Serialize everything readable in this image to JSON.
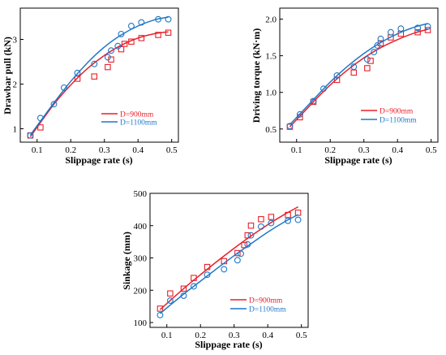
{
  "chart_data": [
    {
      "type": "scatter",
      "xlabel": "Slippage rate (s)",
      "ylabel": "Drawbar pull (kN)",
      "xlim": [
        0.05,
        0.52
      ],
      "ylim": [
        0.7,
        3.7
      ],
      "xticks": [
        "0.1",
        "0.2",
        "0.3",
        "0.4",
        "0.5"
      ],
      "yticks": [
        "1",
        "2",
        "3"
      ],
      "x_tick_values": [
        0.1,
        0.2,
        0.3,
        0.4,
        0.5
      ],
      "y_tick_values": [
        1,
        2,
        3
      ],
      "legend_position": "lower-right",
      "series": [
        {
          "name": "D=900mm",
          "color": "#e8202a",
          "marker": "square",
          "points": [
            [
              0.08,
              0.85
            ],
            [
              0.11,
              1.03
            ],
            [
              0.22,
              2.12
            ],
            [
              0.27,
              2.17
            ],
            [
              0.31,
              2.38
            ],
            [
              0.32,
              2.55
            ],
            [
              0.35,
              2.78
            ],
            [
              0.36,
              2.9
            ],
            [
              0.38,
              2.95
            ],
            [
              0.41,
              3.03
            ],
            [
              0.46,
              3.1
            ],
            [
              0.49,
              3.15
            ]
          ],
          "fit": [
            [
              0.08,
              0.82
            ],
            [
              0.15,
              1.55
            ],
            [
              0.2,
              1.98
            ],
            [
              0.25,
              2.35
            ],
            [
              0.3,
              2.64
            ],
            [
              0.35,
              2.87
            ],
            [
              0.4,
              3.03
            ],
            [
              0.45,
              3.13
            ],
            [
              0.49,
              3.17
            ]
          ]
        },
        {
          "name": "D=1100mm",
          "color": "#1f77c8",
          "marker": "circle",
          "points": [
            [
              0.08,
              0.85
            ],
            [
              0.11,
              1.24
            ],
            [
              0.15,
              1.55
            ],
            [
              0.18,
              1.92
            ],
            [
              0.22,
              2.25
            ],
            [
              0.27,
              2.45
            ],
            [
              0.31,
              2.6
            ],
            [
              0.32,
              2.75
            ],
            [
              0.34,
              2.85
            ],
            [
              0.35,
              3.12
            ],
            [
              0.38,
              3.3
            ],
            [
              0.41,
              3.38
            ],
            [
              0.46,
              3.45
            ],
            [
              0.49,
              3.45
            ]
          ],
          "fit": [
            [
              0.08,
              0.86
            ],
            [
              0.15,
              1.58
            ],
            [
              0.2,
              2.06
            ],
            [
              0.25,
              2.48
            ],
            [
              0.3,
              2.83
            ],
            [
              0.35,
              3.1
            ],
            [
              0.4,
              3.3
            ],
            [
              0.45,
              3.44
            ],
            [
              0.49,
              3.5
            ]
          ]
        }
      ]
    },
    {
      "type": "scatter",
      "xlabel": "Slippage rate (s)",
      "ylabel": "Driving torque (kN·m)",
      "xlim": [
        0.05,
        0.52
      ],
      "ylim": [
        0.32,
        2.15
      ],
      "xticks": [
        "0.1",
        "0.2",
        "0.3",
        "0.4",
        "0.5"
      ],
      "yticks": [
        "0.5",
        "1.0",
        "1.5",
        "2.0"
      ],
      "x_tick_values": [
        0.1,
        0.2,
        0.3,
        0.4,
        0.5
      ],
      "y_tick_values": [
        0.5,
        1.0,
        1.5,
        2.0
      ],
      "legend_position": "lower-right",
      "series": [
        {
          "name": "D=900mm",
          "color": "#e8202a",
          "marker": "square",
          "points": [
            [
              0.08,
              0.53
            ],
            [
              0.11,
              0.66
            ],
            [
              0.15,
              0.87
            ],
            [
              0.22,
              1.17
            ],
            [
              0.27,
              1.27
            ],
            [
              0.31,
              1.33
            ],
            [
              0.32,
              1.43
            ],
            [
              0.35,
              1.67
            ],
            [
              0.38,
              1.75
            ],
            [
              0.41,
              1.8
            ],
            [
              0.46,
              1.82
            ],
            [
              0.49,
              1.85
            ]
          ],
          "fit": [
            [
              0.08,
              0.53
            ],
            [
              0.15,
              0.87
            ],
            [
              0.2,
              1.1
            ],
            [
              0.25,
              1.3
            ],
            [
              0.3,
              1.47
            ],
            [
              0.35,
              1.61
            ],
            [
              0.4,
              1.72
            ],
            [
              0.45,
              1.81
            ],
            [
              0.49,
              1.86
            ]
          ]
        },
        {
          "name": "D=1100mm",
          "color": "#1f77c8",
          "marker": "circle",
          "points": [
            [
              0.08,
              0.54
            ],
            [
              0.11,
              0.7
            ],
            [
              0.15,
              0.88
            ],
            [
              0.18,
              1.05
            ],
            [
              0.22,
              1.23
            ],
            [
              0.27,
              1.35
            ],
            [
              0.31,
              1.45
            ],
            [
              0.33,
              1.55
            ],
            [
              0.34,
              1.64
            ],
            [
              0.35,
              1.73
            ],
            [
              0.38,
              1.82
            ],
            [
              0.41,
              1.87
            ],
            [
              0.46,
              1.88
            ],
            [
              0.49,
              1.9
            ]
          ],
          "fit": [
            [
              0.08,
              0.56
            ],
            [
              0.15,
              0.9
            ],
            [
              0.2,
              1.14
            ],
            [
              0.25,
              1.35
            ],
            [
              0.3,
              1.53
            ],
            [
              0.35,
              1.68
            ],
            [
              0.4,
              1.8
            ],
            [
              0.45,
              1.89
            ],
            [
              0.49,
              1.94
            ]
          ]
        }
      ]
    },
    {
      "type": "scatter",
      "xlabel": "Slippage rate (s)",
      "ylabel": "Sinkage (mm)",
      "xlim": [
        0.05,
        0.52
      ],
      "ylim": [
        85,
        500
      ],
      "xticks": [
        "0.1",
        "0.2",
        "0.3",
        "0.4",
        "0.5"
      ],
      "yticks": [
        "100",
        "200",
        "300",
        "400",
        "500"
      ],
      "x_tick_values": [
        0.1,
        0.2,
        0.3,
        0.4,
        0.5
      ],
      "y_tick_values": [
        100,
        200,
        300,
        400,
        500
      ],
      "legend_position": "lower-right",
      "series": [
        {
          "name": "D=900mm",
          "color": "#e8202a",
          "marker": "square",
          "points": [
            [
              0.08,
              143
            ],
            [
              0.11,
              190
            ],
            [
              0.15,
              205
            ],
            [
              0.18,
              238
            ],
            [
              0.22,
              272
            ],
            [
              0.27,
              290
            ],
            [
              0.31,
              315
            ],
            [
              0.33,
              340
            ],
            [
              0.34,
              370
            ],
            [
              0.35,
              400
            ],
            [
              0.38,
              420
            ],
            [
              0.41,
              427
            ],
            [
              0.46,
              433
            ],
            [
              0.49,
              440
            ]
          ],
          "fit": [
            [
              0.08,
              140
            ],
            [
              0.15,
              205
            ],
            [
              0.2,
              248
            ],
            [
              0.25,
              290
            ],
            [
              0.3,
              330
            ],
            [
              0.35,
              368
            ],
            [
              0.4,
              403
            ],
            [
              0.45,
              435
            ],
            [
              0.49,
              458
            ]
          ]
        },
        {
          "name": "D=1100mm",
          "color": "#1f77c8",
          "marker": "circle",
          "points": [
            [
              0.08,
              123
            ],
            [
              0.11,
              168
            ],
            [
              0.15,
              183
            ],
            [
              0.18,
              212
            ],
            [
              0.22,
              248
            ],
            [
              0.27,
              265
            ],
            [
              0.31,
              293
            ],
            [
              0.32,
              313
            ],
            [
              0.34,
              342
            ],
            [
              0.35,
              370
            ],
            [
              0.38,
              397
            ],
            [
              0.41,
              408
            ],
            [
              0.46,
              415
            ],
            [
              0.49,
              418
            ]
          ],
          "fit": [
            [
              0.08,
              128
            ],
            [
              0.15,
              188
            ],
            [
              0.2,
              228
            ],
            [
              0.25,
              268
            ],
            [
              0.3,
              307
            ],
            [
              0.35,
              344
            ],
            [
              0.4,
              380
            ],
            [
              0.45,
              412
            ],
            [
              0.49,
              434
            ]
          ]
        }
      ]
    }
  ]
}
